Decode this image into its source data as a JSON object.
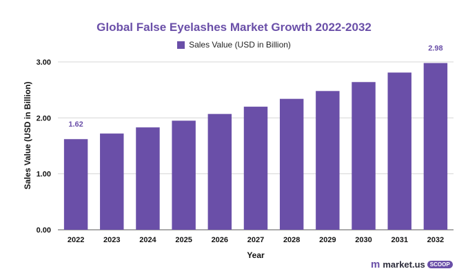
{
  "chart_data": {
    "type": "bar",
    "title": "Global False Eyelashes Market Growth 2022-2032",
    "xlabel": "Year",
    "ylabel": "Sales Value (USD in Billion)",
    "categories": [
      "2022",
      "2023",
      "2024",
      "2025",
      "2026",
      "2027",
      "2028",
      "2029",
      "2030",
      "2031",
      "2032"
    ],
    "series": [
      {
        "name": "Sales Value (USD in Billion)",
        "values": [
          1.62,
          1.72,
          1.83,
          1.95,
          2.07,
          2.2,
          2.34,
          2.48,
          2.64,
          2.81,
          2.98
        ]
      }
    ],
    "data_labels": [
      "1.62",
      "",
      "",
      "",
      "",
      "",
      "",
      "",
      "",
      "",
      "2.98"
    ],
    "ylim": [
      0,
      3
    ],
    "yticks": [
      "0.00",
      "1.00",
      "2.00",
      "3.00"
    ],
    "ytick_values": [
      0,
      1,
      2,
      3
    ],
    "grid": true,
    "legend_position": "top-center",
    "bar_color": "#6a4fa8"
  },
  "brand": {
    "name": "market.us",
    "badge": "SCOOP",
    "mark": "m"
  }
}
